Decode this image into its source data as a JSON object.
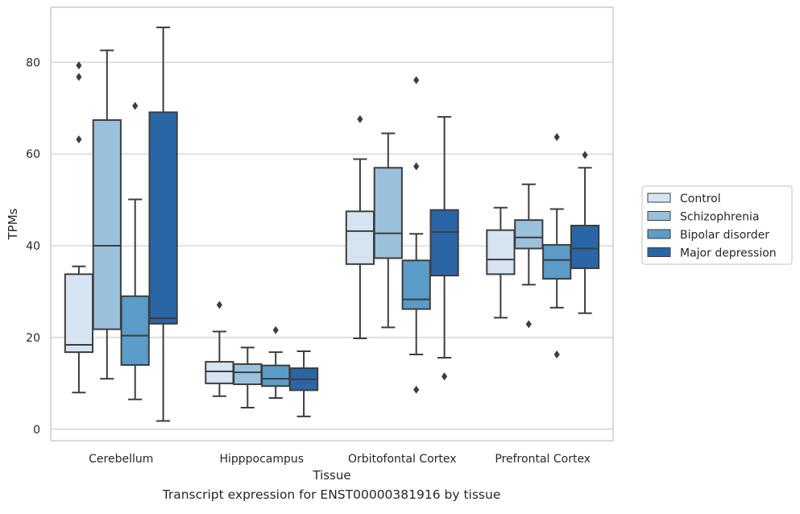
{
  "caption": "Transcript expression for ENST00000381916 by tissue",
  "chart_data": {
    "type": "boxplot",
    "title": "",
    "xlabel": "Tissue",
    "ylabel": "TPMs",
    "ylim": [
      -2.5,
      92
    ],
    "yticks": [
      0,
      20,
      40,
      60,
      80
    ],
    "grid": "horizontal",
    "legend_position": "right",
    "categories": [
      "Cerebellum",
      "Hipppocampus",
      "Orbitofontal Cortex",
      "Prefrontal Cortex"
    ],
    "series": [
      {
        "name": "Control",
        "color": "#d6e4f2",
        "boxes": [
          {
            "whislo": 8.0,
            "q1": 16.8,
            "med": 18.4,
            "q3": 33.8,
            "whishi": 35.5,
            "fliers": [
              63.2,
              76.8,
              79.3
            ]
          },
          {
            "whislo": 7.2,
            "q1": 10.0,
            "med": 12.6,
            "q3": 14.7,
            "whishi": 21.3,
            "fliers": [
              27.1
            ]
          },
          {
            "whislo": 19.8,
            "q1": 36.0,
            "med": 43.2,
            "q3": 47.5,
            "whishi": 58.9,
            "fliers": [
              67.6
            ]
          },
          {
            "whislo": 24.3,
            "q1": 33.8,
            "med": 37.0,
            "q3": 43.4,
            "whishi": 48.3,
            "fliers": []
          }
        ]
      },
      {
        "name": "Schizophrenia",
        "color": "#9ac1dc",
        "boxes": [
          {
            "whislo": 11.0,
            "q1": 21.8,
            "med": 40.0,
            "q3": 67.4,
            "whishi": 82.6,
            "fliers": []
          },
          {
            "whislo": 4.7,
            "q1": 9.8,
            "med": 12.4,
            "q3": 14.2,
            "whishi": 17.8,
            "fliers": []
          },
          {
            "whislo": 22.2,
            "q1": 37.3,
            "med": 42.7,
            "q3": 57.0,
            "whishi": 64.5,
            "fliers": []
          },
          {
            "whislo": 31.5,
            "q1": 39.4,
            "med": 41.8,
            "q3": 45.6,
            "whishi": 53.4,
            "fliers": [
              22.9
            ]
          }
        ]
      },
      {
        "name": "Bipolar disorder",
        "color": "#5b9cc8",
        "boxes": [
          {
            "whislo": 6.5,
            "q1": 14.0,
            "med": 20.4,
            "q3": 29.0,
            "whishi": 50.1,
            "fliers": [
              70.5
            ]
          },
          {
            "whislo": 6.8,
            "q1": 9.4,
            "med": 11.0,
            "q3": 13.9,
            "whishi": 16.8,
            "fliers": [
              21.6
            ]
          },
          {
            "whislo": 16.3,
            "q1": 26.2,
            "med": 28.3,
            "q3": 36.8,
            "whishi": 42.6,
            "fliers": [
              8.6,
              57.3,
              76.1
            ]
          },
          {
            "whislo": 26.5,
            "q1": 32.8,
            "med": 36.9,
            "q3": 40.2,
            "whishi": 48.0,
            "fliers": [
              16.3,
              63.7
            ]
          }
        ]
      },
      {
        "name": "Major depression",
        "color": "#2a66a6",
        "boxes": [
          {
            "whislo": 1.8,
            "q1": 23.0,
            "med": 24.2,
            "q3": 69.1,
            "whishi": 87.6,
            "fliers": []
          },
          {
            "whislo": 2.8,
            "q1": 8.5,
            "med": 10.9,
            "q3": 13.3,
            "whishi": 17.0,
            "fliers": []
          },
          {
            "whislo": 15.6,
            "q1": 33.5,
            "med": 43.0,
            "q3": 47.8,
            "whishi": 68.1,
            "fliers": [
              11.5
            ]
          },
          {
            "whislo": 25.3,
            "q1": 35.1,
            "med": 39.4,
            "q3": 44.4,
            "whishi": 57.0,
            "fliers": [
              59.8
            ]
          }
        ]
      }
    ]
  }
}
